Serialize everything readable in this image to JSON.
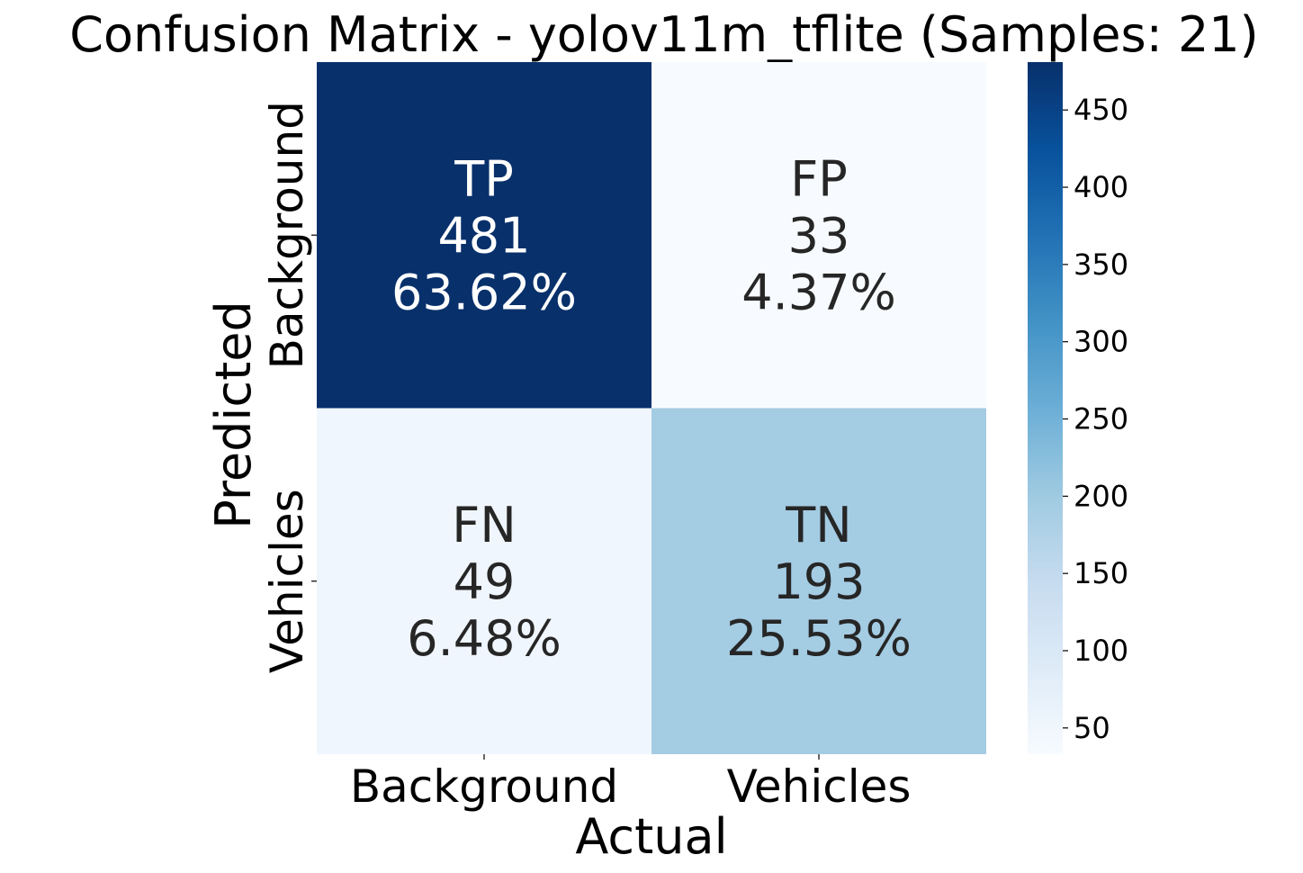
{
  "chart_data": {
    "type": "heatmap",
    "title": "Confusion Matrix - yolov11m_tflite (Samples: 21)",
    "xlabel": "Actual",
    "ylabel": "Predicted",
    "x_categories": [
      "Background",
      "Vehicles"
    ],
    "y_categories": [
      "Background",
      "Vehicles"
    ],
    "cells": [
      {
        "row": 0,
        "col": 0,
        "label": "TP",
        "value": 481,
        "percent": "63.62%",
        "text_color": "#ffffff"
      },
      {
        "row": 0,
        "col": 1,
        "label": "FP",
        "value": 33,
        "percent": "4.37%",
        "text_color": "#262626"
      },
      {
        "row": 1,
        "col": 0,
        "label": "FN",
        "value": 49,
        "percent": "6.48%",
        "text_color": "#262626"
      },
      {
        "row": 1,
        "col": 1,
        "label": "TN",
        "value": 193,
        "percent": "25.53%",
        "text_color": "#262626"
      }
    ],
    "colorbar": {
      "colormap": "Blues",
      "range": [
        33,
        481
      ],
      "ticks": [
        50,
        100,
        150,
        200,
        250,
        300,
        350,
        400,
        450
      ]
    }
  }
}
